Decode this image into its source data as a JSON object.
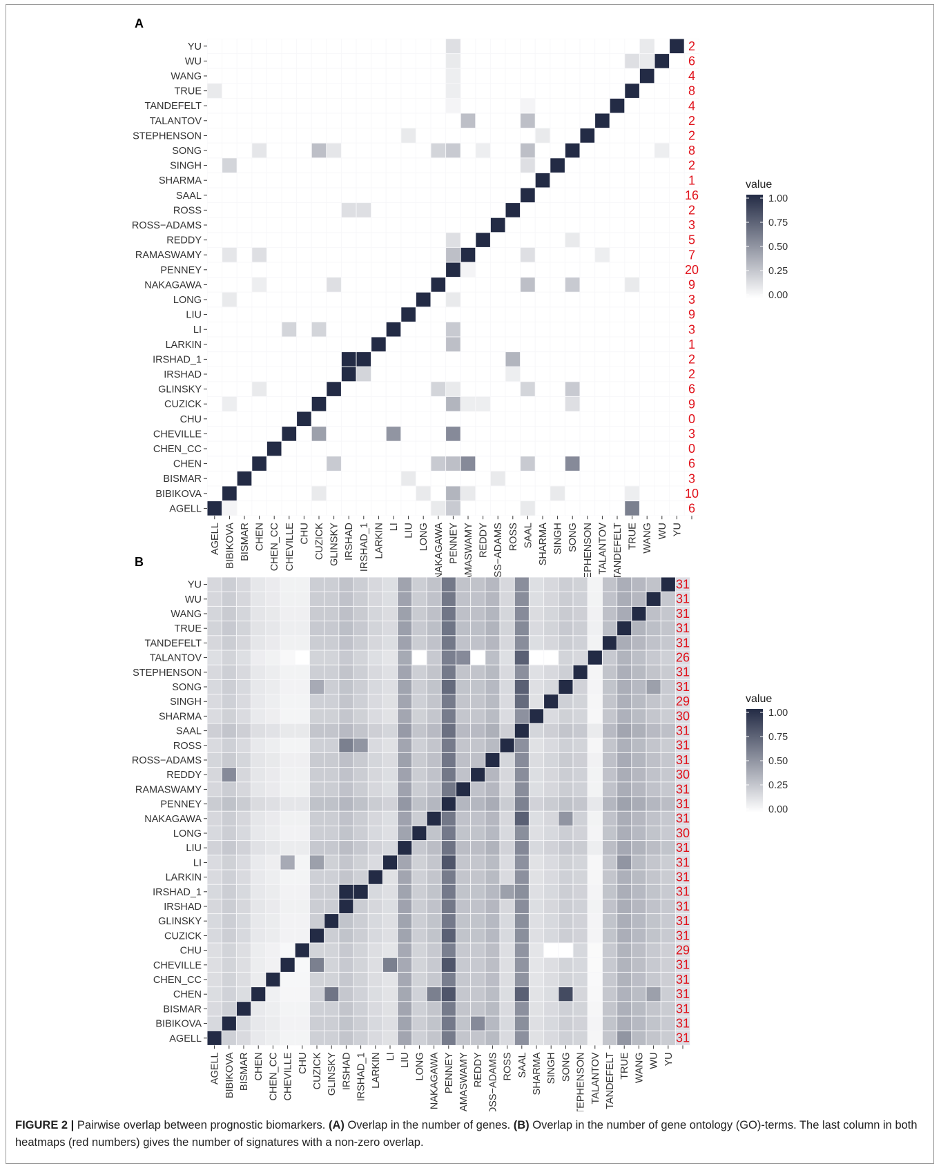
{
  "figure": {
    "caption": {
      "lead": "FIGURE 2 |",
      "text1": " Pairwise overlap between prognostic biomarkers. ",
      "a_label": "(A)",
      "text2": " Overlap in the number of genes. ",
      "b_label": "(B)",
      "text3": " Overlap in the number of gene ontology (GO)-terms. The last column in both heatmaps (red numbers) gives the number of signatures with a non-zero overlap."
    }
  },
  "chart_data": [
    {
      "type": "heatmap",
      "panel_label": "A",
      "title": "",
      "xlabel": "",
      "ylabel": "",
      "categories": [
        "AGELL",
        "BIBIKOVA",
        "BISMAR",
        "CHEN",
        "CHEN_CC",
        "CHEVILLE",
        "CHU",
        "CUZICK",
        "GLINSKY",
        "IRSHAD",
        "IRSHAD_1",
        "LARKIN",
        "LI",
        "LIU",
        "LONG",
        "NAKAGAWA",
        "PENNEY",
        "RAMASWAMY",
        "REDDY",
        "ROSS−ADAMS",
        "ROSS",
        "SAAL",
        "SHARMA",
        "SINGH",
        "SONG",
        "STEPHENSON",
        "TALANTOV",
        "TANDEFELT",
        "TRUE",
        "WANG",
        "WU",
        "YU"
      ],
      "legend": {
        "title": "value",
        "ticks": [
          "1.00",
          "0.75",
          "0.50",
          "0.25",
          "0.00"
        ],
        "min": 0,
        "max": 1,
        "low_color": "#ffffff",
        "high_color": "#232b45",
        "placement": "right"
      },
      "grid": false,
      "counts": [
        "6",
        "10",
        "3",
        "6",
        "0",
        "3",
        "0",
        "9",
        "6",
        "2",
        "2",
        "1",
        "3",
        "9",
        "3",
        "9",
        "20",
        "7",
        "5",
        "3",
        "2",
        "16",
        "1",
        "2",
        "8",
        "2",
        "2",
        "4",
        "8",
        "4",
        "6",
        "2"
      ],
      "count_color": "#e0121b",
      "highlights": [
        {
          "row": "AGELL",
          "col": "TRUE",
          "value": 0.6
        },
        {
          "row": "AGELL",
          "col": "PENNEY",
          "value": 0.25
        },
        {
          "row": "AGELL",
          "col": "NAKAGAWA",
          "value": 0.1
        },
        {
          "row": "AGELL",
          "col": "SAAL",
          "value": 0.1
        },
        {
          "row": "AGELL",
          "col": "BIBIKOVA",
          "value": 0.05
        },
        {
          "row": "BIBIKOVA",
          "col": "PENNEY",
          "value": 0.35
        },
        {
          "row": "BIBIKOVA",
          "col": "CUZICK",
          "value": 0.1
        },
        {
          "row": "BIBIKOVA",
          "col": "LONG",
          "value": 0.1
        },
        {
          "row": "BIBIKOVA",
          "col": "RAMASWAMY",
          "value": 0.1
        },
        {
          "row": "BIBIKOVA",
          "col": "SINGH",
          "value": 0.1
        },
        {
          "row": "BIBIKOVA",
          "col": "TRUE",
          "value": 0.08
        },
        {
          "row": "BISMAR",
          "col": "LIU",
          "value": 0.1
        },
        {
          "row": "BISMAR",
          "col": "ROSS−ADAMS",
          "value": 0.1
        },
        {
          "row": "CHEN",
          "col": "RAMASWAMY",
          "value": 0.55
        },
        {
          "row": "CHEN",
          "col": "SONG",
          "value": 0.55
        },
        {
          "row": "CHEN",
          "col": "PENNEY",
          "value": 0.3
        },
        {
          "row": "CHEN",
          "col": "NAKAGAWA",
          "value": 0.25
        },
        {
          "row": "CHEN",
          "col": "GLINSKY",
          "value": 0.25
        },
        {
          "row": "CHEN",
          "col": "SAAL",
          "value": 0.25
        },
        {
          "row": "CHEVILLE",
          "col": "CUZICK",
          "value": 0.45
        },
        {
          "row": "CHEVILLE",
          "col": "LI",
          "value": 0.5
        },
        {
          "row": "CHEVILLE",
          "col": "PENNEY",
          "value": 0.55
        },
        {
          "row": "CUZICK",
          "col": "PENNEY",
          "value": 0.35
        },
        {
          "row": "CUZICK",
          "col": "SONG",
          "value": 0.15
        },
        {
          "row": "CUZICK",
          "col": "RAMASWAMY",
          "value": 0.08
        },
        {
          "row": "CUZICK",
          "col": "REDDY",
          "value": 0.08
        },
        {
          "row": "CUZICK",
          "col": "BIBIKOVA",
          "value": 0.08
        },
        {
          "row": "GLINSKY",
          "col": "NAKAGAWA",
          "value": 0.2
        },
        {
          "row": "GLINSKY",
          "col": "SONG",
          "value": 0.25
        },
        {
          "row": "GLINSKY",
          "col": "SAAL",
          "value": 0.2
        },
        {
          "row": "GLINSKY",
          "col": "PENNEY",
          "value": 0.1
        },
        {
          "row": "GLINSKY",
          "col": "CHEN",
          "value": 0.1
        },
        {
          "row": "IRSHAD",
          "col": "IRSHAD_1",
          "value": 0.2
        },
        {
          "row": "IRSHAD",
          "col": "ROSS",
          "value": 0.08
        },
        {
          "row": "IRSHAD_1",
          "col": "IRSHAD",
          "value": 1.0
        },
        {
          "row": "IRSHAD_1",
          "col": "ROSS",
          "value": 0.35
        },
        {
          "row": "LARKIN",
          "col": "PENNEY",
          "value": 0.3
        },
        {
          "row": "LI",
          "col": "CHEVILLE",
          "value": 0.2
        },
        {
          "row": "LI",
          "col": "CUZICK",
          "value": 0.2
        },
        {
          "row": "LI",
          "col": "PENNEY",
          "value": 0.25
        },
        {
          "row": "LONG",
          "col": "BIBIKOVA",
          "value": 0.1
        },
        {
          "row": "LONG",
          "col": "PENNEY",
          "value": 0.1
        },
        {
          "row": "NAKAGAWA",
          "col": "GLINSKY",
          "value": 0.15
        },
        {
          "row": "NAKAGAWA",
          "col": "SAAL",
          "value": 0.3
        },
        {
          "row": "NAKAGAWA",
          "col": "SONG",
          "value": 0.25
        },
        {
          "row": "NAKAGAWA",
          "col": "TRUE",
          "value": 0.1
        },
        {
          "row": "NAKAGAWA",
          "col": "CHEN",
          "value": 0.08
        },
        {
          "row": "PENNEY",
          "col": "RAMASWAMY",
          "value": 0.05
        },
        {
          "row": "RAMASWAMY",
          "col": "PENNEY",
          "value": 0.3
        },
        {
          "row": "RAMASWAMY",
          "col": "SAAL",
          "value": 0.15
        },
        {
          "row": "RAMASWAMY",
          "col": "CHEN",
          "value": 0.15
        },
        {
          "row": "RAMASWAMY",
          "col": "BIBIKOVA",
          "value": 0.12
        },
        {
          "row": "RAMASWAMY",
          "col": "TALANTOV",
          "value": 0.08
        },
        {
          "row": "REDDY",
          "col": "PENNEY",
          "value": 0.15
        },
        {
          "row": "REDDY",
          "col": "SONG",
          "value": 0.1
        },
        {
          "row": "ROSS",
          "col": "IRSHAD",
          "value": 0.15
        },
        {
          "row": "ROSS",
          "col": "IRSHAD_1",
          "value": 0.15
        },
        {
          "row": "SINGH",
          "col": "BIBIKOVA",
          "value": 0.2
        },
        {
          "row": "SINGH",
          "col": "SAAL",
          "value": 0.15
        },
        {
          "row": "SONG",
          "col": "CUZICK",
          "value": 0.3
        },
        {
          "row": "SONG",
          "col": "PENNEY",
          "value": 0.25
        },
        {
          "row": "SONG",
          "col": "NAKAGAWA",
          "value": 0.2
        },
        {
          "row": "SONG",
          "col": "SAAL",
          "value": 0.3
        },
        {
          "row": "SONG",
          "col": "GLINSKY",
          "value": 0.12
        },
        {
          "row": "SONG",
          "col": "CHEN",
          "value": 0.12
        },
        {
          "row": "SONG",
          "col": "REDDY",
          "value": 0.08
        },
        {
          "row": "SONG",
          "col": "WU",
          "value": 0.08
        },
        {
          "row": "STEPHENSON",
          "col": "LIU",
          "value": 0.1
        },
        {
          "row": "STEPHENSON",
          "col": "SHARMA",
          "value": 0.1
        },
        {
          "row": "TALANTOV",
          "col": "RAMASWAMY",
          "value": 0.3
        },
        {
          "row": "TALANTOV",
          "col": "SAAL",
          "value": 0.3
        },
        {
          "row": "TRUE",
          "col": "AGELL",
          "value": 0.1
        },
        {
          "row": "TRUE",
          "col": "PENNEY",
          "value": 0.08
        },
        {
          "row": "TANDEFELT",
          "col": "PENNEY",
          "value": 0.05
        },
        {
          "row": "TANDEFELT",
          "col": "SAAL",
          "value": 0.05
        },
        {
          "row": "WU",
          "col": "TRUE",
          "value": 0.15
        },
        {
          "row": "WU",
          "col": "WANG",
          "value": 0.1
        },
        {
          "row": "WU",
          "col": "PENNEY",
          "value": 0.1
        },
        {
          "row": "WANG",
          "col": "PENNEY",
          "value": 0.08
        },
        {
          "row": "YU",
          "col": "PENNEY",
          "value": 0.15
        },
        {
          "row": "YU",
          "col": "WANG",
          "value": 0.1
        }
      ]
    },
    {
      "type": "heatmap",
      "panel_label": "B",
      "title": "",
      "xlabel": "",
      "ylabel": "",
      "categories": [
        "AGELL",
        "BIBIKOVA",
        "BISMAR",
        "CHEN",
        "CHEN_CC",
        "CHEVILLE",
        "CHU",
        "CUZICK",
        "GLINSKY",
        "IRSHAD",
        "IRSHAD_1",
        "LARKIN",
        "LI",
        "LIU",
        "LONG",
        "NAKAGAWA",
        "PENNEY",
        "RAMASWAMY",
        "REDDY",
        "ROSS−ADAMS",
        "ROSS",
        "SAAL",
        "SHARMA",
        "SINGH",
        "SONG",
        "STEPHENSON",
        "TALANTOV",
        "TANDEFELT",
        "TRUE",
        "WANG",
        "WU",
        "YU"
      ],
      "legend": {
        "title": "value",
        "ticks": [
          "1.00",
          "0.75",
          "0.50",
          "0.25",
          "0.00"
        ],
        "min": 0,
        "max": 1,
        "low_color": "#ffffff",
        "high_color": "#232b45",
        "placement": "right"
      },
      "grid": false,
      "counts": [
        "31",
        "31",
        "31",
        "31",
        "31",
        "31",
        "29",
        "31",
        "31",
        "31",
        "31",
        "31",
        "31",
        "31",
        "30",
        "31",
        "31",
        "31",
        "30",
        "31",
        "31",
        "31",
        "30",
        "29",
        "31",
        "31",
        "26",
        "31",
        "31",
        "31",
        "31",
        "31"
      ],
      "count_color": "#e0121b",
      "column_baseline": [
        0.15,
        0.2,
        0.15,
        0.08,
        0.06,
        0.03,
        0.03,
        0.2,
        0.2,
        0.25,
        0.2,
        0.15,
        0.12,
        0.4,
        0.2,
        0.25,
        0.6,
        0.25,
        0.25,
        0.3,
        0.15,
        0.5,
        0.12,
        0.15,
        0.2,
        0.18,
        0.02,
        0.25,
        0.35,
        0.3,
        0.25,
        0.22
      ],
      "highlights": [
        {
          "row": "AGELL",
          "col": "TRUE",
          "value": 0.5
        },
        {
          "row": "BIBIKOVA",
          "col": "REDDY",
          "value": 0.55
        },
        {
          "row": "REDDY",
          "col": "BIBIKOVA",
          "value": 0.55
        },
        {
          "row": "CHEN",
          "col": "GLINSKY",
          "value": 0.65
        },
        {
          "row": "CHEN",
          "col": "NAKAGAWA",
          "value": 0.6
        },
        {
          "row": "CHEN",
          "col": "SONG",
          "value": 0.85
        },
        {
          "row": "CHEN",
          "col": "PENNEY",
          "value": 0.8
        },
        {
          "row": "CHEN",
          "col": "SAAL",
          "value": 0.75
        },
        {
          "row": "CHEN",
          "col": "WU",
          "value": 0.45
        },
        {
          "row": "CHEVILLE",
          "col": "CUZICK",
          "value": 0.6
        },
        {
          "row": "CHEVILLE",
          "col": "LI",
          "value": 0.6
        },
        {
          "row": "CHEVILLE",
          "col": "PENNEY",
          "value": 0.8
        },
        {
          "row": "LI",
          "col": "CHEVILLE",
          "value": 0.4
        },
        {
          "row": "LI",
          "col": "CUZICK",
          "value": 0.45
        },
        {
          "row": "LI",
          "col": "PENNEY",
          "value": 0.8
        },
        {
          "row": "LI",
          "col": "TRUE",
          "value": 0.5
        },
        {
          "row": "IRSHAD_1",
          "col": "IRSHAD",
          "value": 1.0
        },
        {
          "row": "IRSHAD_1",
          "col": "ROSS",
          "value": 0.45
        },
        {
          "row": "ROSS",
          "col": "IRSHAD",
          "value": 0.6
        },
        {
          "row": "ROSS",
          "col": "IRSHAD_1",
          "value": 0.5
        },
        {
          "row": "SONG",
          "col": "PENNEY",
          "value": 0.7
        },
        {
          "row": "SONG",
          "col": "SAAL",
          "value": 0.75
        },
        {
          "row": "SONG",
          "col": "WU",
          "value": 0.45
        },
        {
          "row": "SONG",
          "col": "CUZICK",
          "value": 0.4
        },
        {
          "row": "SINGH",
          "col": "SAAL",
          "value": 0.7
        },
        {
          "row": "TALANTOV",
          "col": "SAAL",
          "value": 0.75
        },
        {
          "row": "TALANTOV",
          "col": "RAMASWAMY",
          "value": 0.55
        },
        {
          "row": "TALANTOV",
          "col": "REDDY",
          "value": 0.0
        },
        {
          "row": "TALANTOV",
          "col": "SHARMA",
          "value": 0.0
        },
        {
          "row": "TALANTOV",
          "col": "SINGH",
          "value": 0.0
        },
        {
          "row": "TALANTOV",
          "col": "CHU",
          "value": 0.0
        },
        {
          "row": "TALANTOV",
          "col": "LONG",
          "value": 0.0
        },
        {
          "row": "NAKAGAWA",
          "col": "SAAL",
          "value": 0.75
        },
        {
          "row": "NAKAGAWA",
          "col": "SONG",
          "value": 0.5
        },
        {
          "row": "CUZICK",
          "col": "PENNEY",
          "value": 0.75
        },
        {
          "row": "CHU",
          "col": "SONG",
          "value": 0.0
        },
        {
          "row": "CHU",
          "col": "SINGH",
          "value": 0.0
        }
      ]
    }
  ]
}
